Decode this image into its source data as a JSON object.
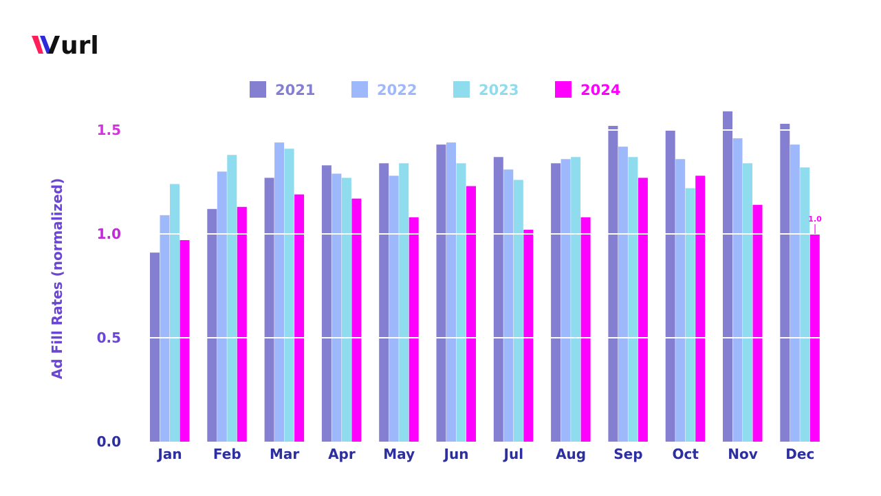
{
  "brand": {
    "logo_text": "wurl",
    "logo_colors": [
      "#ff1f5a",
      "#2b2bdc",
      "#111111"
    ]
  },
  "chart_data": {
    "type": "bar",
    "title": "",
    "xlabel": "",
    "ylabel": "Ad Fill Rates (normalized)",
    "ylim": [
      0,
      1.65
    ],
    "yticks": [
      "0.0",
      "0.5",
      "1.0",
      "1.5"
    ],
    "ytick_colors": [
      "#2e2f9e",
      "#6b46d6",
      "#c02ad9",
      "#d633e0"
    ],
    "grid": true,
    "legend_position": "top",
    "categories": [
      "Jan",
      "Feb",
      "Mar",
      "Apr",
      "May",
      "Jun",
      "Jul",
      "Aug",
      "Sep",
      "Oct",
      "Nov",
      "Dec"
    ],
    "series": [
      {
        "name": "2021",
        "color": "#857fd1",
        "values": [
          0.91,
          1.12,
          1.27,
          1.33,
          1.34,
          1.43,
          1.37,
          1.34,
          1.52,
          1.5,
          1.59,
          1.53
        ]
      },
      {
        "name": "2022",
        "color": "#9db8fb",
        "values": [
          1.09,
          1.3,
          1.44,
          1.29,
          1.28,
          1.44,
          1.31,
          1.36,
          1.42,
          1.36,
          1.46,
          1.43
        ]
      },
      {
        "name": "2023",
        "color": "#8fdcef",
        "values": [
          1.24,
          1.38,
          1.41,
          1.27,
          1.34,
          1.34,
          1.26,
          1.37,
          1.37,
          1.22,
          1.34,
          1.32
        ]
      },
      {
        "name": "2024",
        "color": "#ff00ff",
        "values": [
          0.97,
          1.13,
          1.19,
          1.17,
          1.08,
          1.23,
          1.02,
          1.08,
          1.27,
          1.28,
          1.14,
          1.0
        ]
      }
    ],
    "annotations": [
      {
        "series": "2024",
        "category": "Dec",
        "text": "1.0"
      }
    ]
  }
}
